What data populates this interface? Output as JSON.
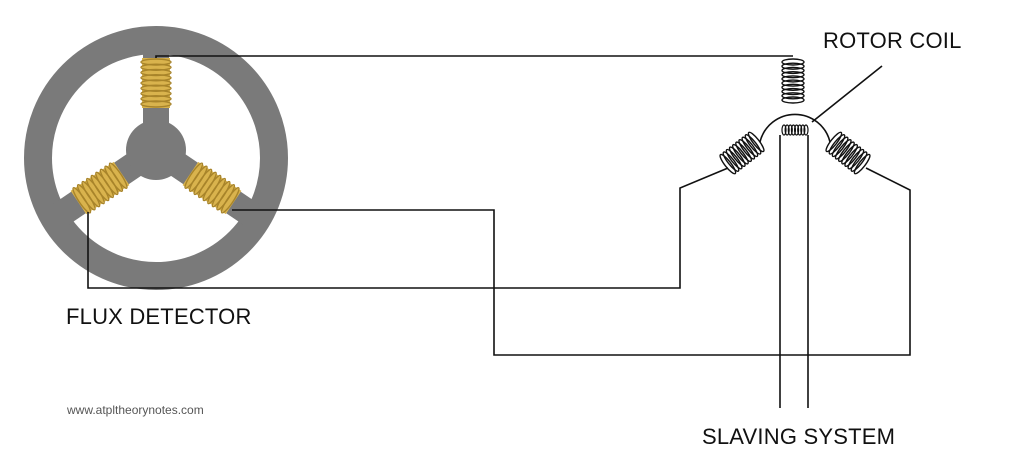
{
  "labels": {
    "rotor_coil": "ROTOR COIL",
    "flux_detector": "FLUX DETECTOR",
    "slaving_system": "SLAVING SYSTEM",
    "website": "www.atpltheorynotes.com"
  },
  "colors": {
    "detector_body": "#7a7a7a",
    "detector_coil": "#d9b34d",
    "detector_coil_dark": "#a8842a",
    "wire": "#111111",
    "stator_coil": "#111111",
    "background": "#ffffff"
  }
}
